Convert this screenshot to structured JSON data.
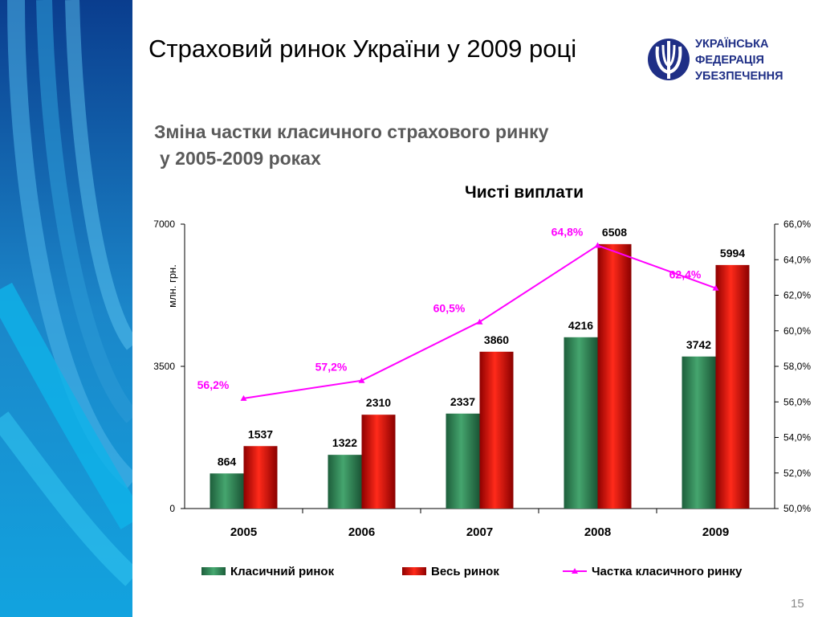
{
  "slide": {
    "title": "Страховий ринок України у 2009 році",
    "subtitle_line1": "Зміна частки класичного страхового ринку",
    "subtitle_line2": "у 2005-2009 роках",
    "page_number": "15"
  },
  "logo": {
    "line1": "УКРАЇНСЬКА",
    "line2": "ФЕДЕРАЦІЯ",
    "line3": "УБЕЗПЕЧЕННЯ",
    "brand_color": "#1f2f86"
  },
  "colors": {
    "classic": "#2e8b57",
    "total": "#e00000",
    "share": "#ff00ff"
  },
  "chart_data": {
    "type": "bar",
    "title": "Чисті виплати",
    "ylabel": "млн. грн.",
    "categories": [
      "2005",
      "2006",
      "2007",
      "2008",
      "2009"
    ],
    "ylim": [
      0,
      7000
    ],
    "yticks": [
      "0",
      "3500",
      "7000"
    ],
    "y2lim": [
      50,
      66
    ],
    "y2ticks": [
      "50,0%",
      "52,0%",
      "54,0%",
      "56,0%",
      "58,0%",
      "60,0%",
      "62,0%",
      "64,0%",
      "66,0%"
    ],
    "series": [
      {
        "name": "Класичний ринок",
        "kind": "bar",
        "values": [
          864,
          1322,
          2337,
          4216,
          3742
        ]
      },
      {
        "name": "Весь ринок",
        "kind": "bar",
        "values": [
          1537,
          2310,
          3860,
          6508,
          5994
        ]
      },
      {
        "name": "Частка класичного ринку",
        "kind": "line",
        "axis": "right",
        "values": [
          56.2,
          57.2,
          60.5,
          64.8,
          62.4
        ],
        "labels": [
          "56,2%",
          "57,2%",
          "60,5%",
          "64,8%",
          "62,4%"
        ]
      }
    ],
    "legend_position": "bottom",
    "grid": false
  }
}
